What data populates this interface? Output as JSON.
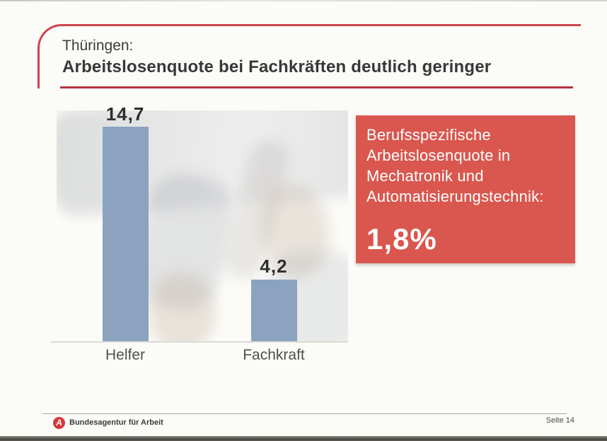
{
  "slide": {
    "pretitle": "Thüringen:",
    "title": "Arbeitslosenquote bei Fachkräften deutlich geringer"
  },
  "chart_data": {
    "type": "bar",
    "categories": [
      "Helfer",
      "Fachkraft"
    ],
    "values": [
      14.7,
      4.2
    ],
    "value_labels": [
      "14,7",
      "4,2"
    ],
    "title": "",
    "xlabel": "",
    "ylabel": "",
    "ylim": [
      0,
      16
    ],
    "grid": false,
    "legend": false,
    "bar_color": "#8ba3bf",
    "axis_color": "#dadad4"
  },
  "callout": {
    "lines": [
      "Berufsspezifische",
      "Arbeitslosenquote in",
      "Mechatronik und",
      "Automatisierungstechnik:"
    ],
    "value": "1,8%",
    "background_color": "#d9574e",
    "text_color": "#ffffff"
  },
  "footer": {
    "org_name": "Bundesagentur für Arbeit",
    "logo_glyph": "A",
    "page_label": "Seite 14"
  },
  "colors": {
    "frame_red": "#c9474e",
    "underline_red": "#b8323e",
    "logo_red": "#d6383c"
  }
}
